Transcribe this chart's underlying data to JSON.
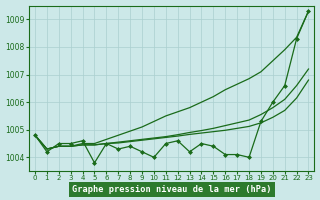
{
  "title": "Graphe pression niveau de la mer (hPa)",
  "x_values": [
    0,
    1,
    2,
    3,
    4,
    5,
    6,
    7,
    8,
    9,
    10,
    11,
    12,
    13,
    14,
    15,
    16,
    17,
    18,
    19,
    20,
    21,
    22,
    23
  ],
  "actual": [
    1004.8,
    1004.2,
    1004.5,
    1004.5,
    1004.6,
    1003.8,
    1004.5,
    1004.3,
    1004.4,
    1004.2,
    1004.0,
    1004.5,
    1004.6,
    1004.2,
    1004.5,
    1004.4,
    1004.1,
    1004.1,
    1004.0,
    1005.3,
    1006.0,
    1006.6,
    1008.3,
    1009.3
  ],
  "line_top": [
    1004.8,
    1004.3,
    1004.4,
    1004.4,
    1004.5,
    1004.5,
    1004.65,
    1004.8,
    1004.95,
    1005.1,
    1005.3,
    1005.5,
    1005.65,
    1005.8,
    1006.0,
    1006.2,
    1006.45,
    1006.65,
    1006.85,
    1007.1,
    1007.5,
    1007.9,
    1008.35,
    1009.3
  ],
  "line_mid1": [
    1004.8,
    1004.3,
    1004.4,
    1004.4,
    1004.45,
    1004.45,
    1004.5,
    1004.55,
    1004.6,
    1004.65,
    1004.7,
    1004.75,
    1004.82,
    1004.9,
    1004.97,
    1005.05,
    1005.15,
    1005.25,
    1005.35,
    1005.55,
    1005.8,
    1006.1,
    1006.6,
    1007.2
  ],
  "line_mid2": [
    1004.8,
    1004.3,
    1004.4,
    1004.4,
    1004.45,
    1004.45,
    1004.5,
    1004.52,
    1004.57,
    1004.62,
    1004.67,
    1004.72,
    1004.77,
    1004.83,
    1004.88,
    1004.93,
    1004.98,
    1005.05,
    1005.12,
    1005.25,
    1005.45,
    1005.7,
    1006.15,
    1006.8
  ],
  "ylim": [
    1003.5,
    1009.5
  ],
  "yticks": [
    1004,
    1005,
    1006,
    1007,
    1008,
    1009
  ],
  "line_color": "#1a6b1a",
  "bg_color": "#cce8e8",
  "grid_color": "#aacfcf",
  "title_bg": "#2d7a2d",
  "title_fg": "#ffffff"
}
